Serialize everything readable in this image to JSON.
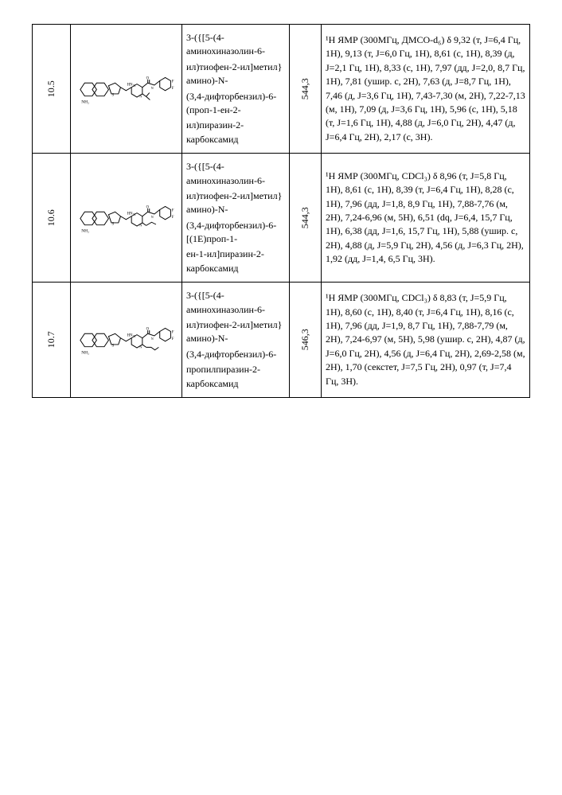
{
  "rows": [
    {
      "id": "10.5",
      "name_lines": [
        "3-({[5-(4-аминохиназолин-6-",
        "ил)тиофен-2-ил]метил}амино)-N-",
        "(3,4-дифторбензил)-6-(проп-1-ен-2-",
        "ил)пиразин-2-карбоксамид"
      ],
      "mass": "544,3",
      "nmr": "¹Н ЯМР (300МГц, ДМСО-d₆) δ 9,32 (т, J=6,4 Гц, 1H), 9,13 (т, J=6,0 Гц, 1H), 8,61 (с, 1H), 8,39 (д, J=2,1 Гц, 1H), 8,33 (с, 1H), 7,97 (дд, J=2,0, 8,7 Гц, 1H), 7,81 (ушир. с, 2H), 7,63 (д, J=8,7 Гц, 1H), 7,46 (д, J=3,6 Гц, 1H), 7,43-7,30 (м, 2H), 7,22-7,13 (м, 1H), 7,09 (д, J=3,6 Гц, 1H), 5,96 (с, 1H), 5,18 (т, J=1,6 Гц, 1H), 4,88 (д, J=6,0 Гц, 2H), 4,47 (д, J=6,4 Гц, 2H), 2,17 (с, 3H)."
    },
    {
      "id": "10.6",
      "name_lines": [
        "3-({[5-(4-аминохиназолин-6-",
        "ил)тиофен-2-ил]метил}амино)-N-",
        "(3,4-дифторбензил)-6-[(1E)проп-1-",
        "ен-1-ил]пиразин-2-карбоксамид"
      ],
      "mass": "544,3",
      "nmr": "¹Н ЯМР (300МГц, CDCl₃) δ 8,96 (т, J=5,8 Гц, 1H), 8,61 (с, 1H), 8,39 (т, J=6,4 Гц, 1H), 8,28 (с, 1H), 7,96 (дд, J=1,8, 8,9 Гц, 1H), 7,88-7,76 (м, 2H), 7,24-6,96 (м, 5H), 6,51 (dq, J=6,4, 15,7 Гц, 1H), 6,38 (дд, J=1,6, 15,7 Гц, 1H), 5,88 (ушир. с, 2H), 4,88 (д, J=5,9 Гц, 2H), 4,56 (д, J=6,3 Гц, 2H), 1,92 (дд, J=1,4, 6,5 Гц, 3H)."
    },
    {
      "id": "10.7",
      "name_lines": [
        "3-({[5-(4-аминохиназолин-6-",
        "ил)тиофен-2-ил]метил}амино)-N-",
        "(3,4-дифторбензил)-6-",
        "пропилпиразин-2-карбоксамид"
      ],
      "mass": "546,3",
      "nmr": "¹Н ЯМР (300МГц, CDCl₃) δ 8,83 (т, J=5,9 Гц, 1H), 8,60 (с, 1H), 8,40 (т, J=6,4 Гц, 1H), 8,16 (с, 1H), 7,96 (дд, J=1,9, 8,7 Гц, 1H), 7,88-7,79 (м, 2H), 7,24-6,97 (м, 5H), 5,98 (ушир. с, 2H), 4,87 (д, J=6,0 Гц, 2H), 4,56 (д, J=6,4 Гц, 2H), 2,69-2,58 (м, 2H), 1,70 (секстет, J=7,5 Гц, 2H), 0,97 (т, J=7,4 Гц, 3H)."
    }
  ]
}
